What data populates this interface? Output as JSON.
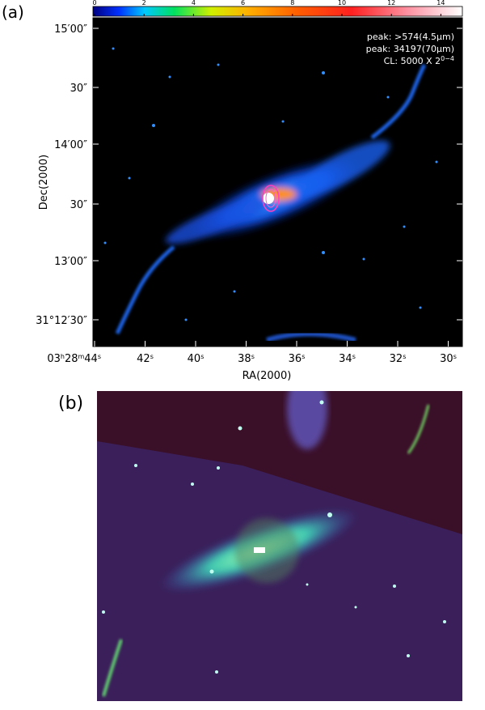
{
  "panel_a": {
    "label": "(a)",
    "colorbar_ticks": [
      0,
      2,
      4,
      6,
      8,
      10,
      12,
      14
    ],
    "annotations": [
      "peak: >574(4.5μm)",
      "peak: 34197(70μm)",
      [
        "CL: 5000 X 2",
        "0−4"
      ]
    ],
    "y_ticks": [
      "15′00″",
      "30″",
      "14′00″",
      "30″",
      "13′00″",
      "31°12′30″"
    ],
    "x_ticks": [
      [
        "03",
        "h",
        "28",
        "m",
        "44",
        "s"
      ],
      [
        "42",
        "s"
      ],
      [
        "40",
        "s"
      ],
      [
        "38",
        "s"
      ],
      [
        "36",
        "s"
      ],
      [
        "34",
        "s"
      ],
      [
        "32",
        "s"
      ],
      [
        "30",
        "s"
      ]
    ],
    "x_title": "RA(2000)",
    "y_title": "Dec(2000)"
  },
  "panel_b": {
    "label": "(b)"
  }
}
